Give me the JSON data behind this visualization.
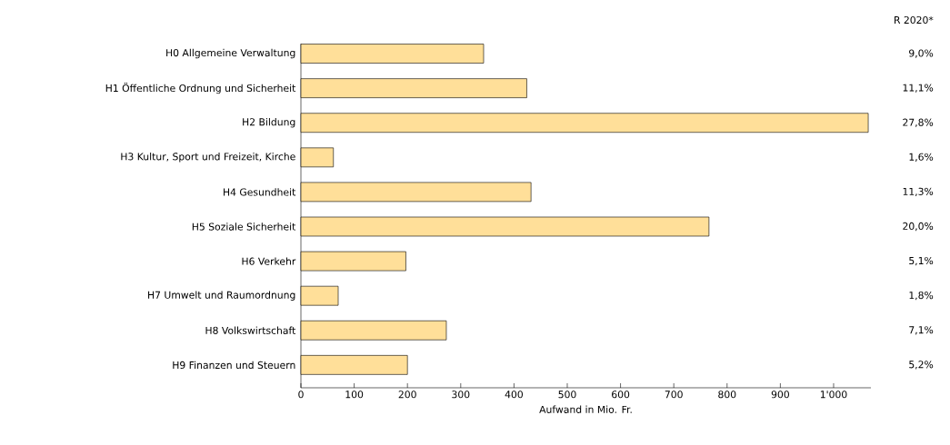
{
  "chart_data": {
    "type": "bar",
    "orientation": "horizontal",
    "categories": [
      "H0 Allgemeine Verwaltung",
      "H1 Öffentliche Ordnung und Sicherheit",
      "H2 Bildung",
      "H3 Kultur, Sport und Freizeit, Kirche",
      "H4 Gesundheit",
      "H5 Soziale Sicherheit",
      "H6 Verkehr",
      "H7 Umwelt und Raumordnung",
      "H8 Volkswirtschaft",
      "H9 Finanzen und Steuern"
    ],
    "values": [
      343,
      424,
      1065,
      61,
      432,
      766,
      197,
      70,
      273,
      200
    ],
    "color": "#ffdf99",
    "xlabel": "Aufwand in Mio. Fr.",
    "xlim": [
      0,
      1070
    ],
    "xticks": [
      0,
      100,
      200,
      300,
      400,
      500,
      600,
      700,
      800,
      900,
      {
        "value": 1000,
        "label": "1'000"
      }
    ],
    "annotations": [
      "R 2020*",
      "9,0%",
      "11,1%",
      "27,8%",
      "1,6%",
      "11,3%",
      "20,0%",
      "5,1%",
      "1,8%",
      "7,1%",
      "5,2%"
    ]
  }
}
